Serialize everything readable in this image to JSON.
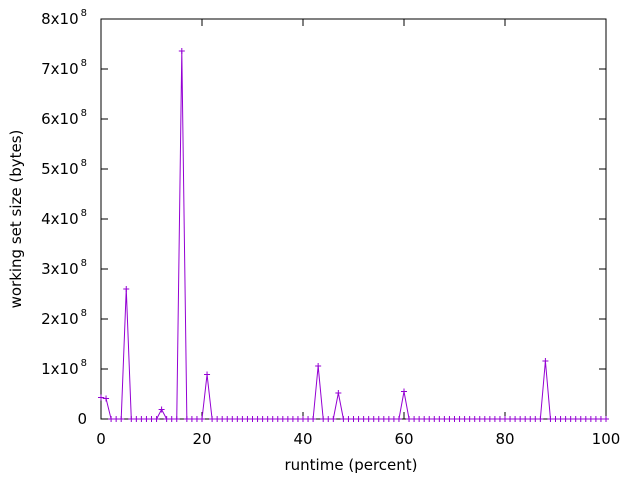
{
  "chart_data": {
    "type": "line",
    "xlabel": "runtime (percent)",
    "ylabel": "working set size (bytes)",
    "xlim": [
      0,
      100
    ],
    "ylim": [
      0,
      800000000
    ],
    "x_ticks": [
      0,
      20,
      40,
      60,
      80,
      100
    ],
    "x_tick_labels": [
      "0",
      "20",
      "40",
      "60",
      "80",
      "100"
    ],
    "y_ticks": [
      {
        "value": 0,
        "mantissa": "0",
        "exponent": ""
      },
      {
        "value": 100000000,
        "mantissa": "1x10",
        "exponent": "8"
      },
      {
        "value": 200000000,
        "mantissa": "2x10",
        "exponent": "8"
      },
      {
        "value": 300000000,
        "mantissa": "3x10",
        "exponent": "8"
      },
      {
        "value": 400000000,
        "mantissa": "4x10",
        "exponent": "8"
      },
      {
        "value": 500000000,
        "mantissa": "5x10",
        "exponent": "8"
      },
      {
        "value": 600000000,
        "mantissa": "6x10",
        "exponent": "8"
      },
      {
        "value": 700000000,
        "mantissa": "7x10",
        "exponent": "8"
      },
      {
        "value": 800000000,
        "mantissa": "8x10",
        "exponent": "8"
      }
    ],
    "grid": false,
    "series_color": "#9400d3",
    "marker": "plus",
    "series": [
      {
        "x": [
          0,
          1,
          2,
          3,
          4,
          5,
          6,
          7,
          8,
          9,
          10,
          11,
          12,
          13,
          14,
          15,
          16,
          17,
          18,
          19,
          20,
          21,
          22,
          23,
          24,
          25,
          26,
          27,
          28,
          29,
          30,
          31,
          32,
          33,
          34,
          35,
          36,
          37,
          38,
          39,
          40,
          41,
          42,
          43,
          44,
          45,
          46,
          47,
          48,
          49,
          50,
          51,
          52,
          53,
          54,
          55,
          56,
          57,
          58,
          59,
          60,
          61,
          62,
          63,
          64,
          65,
          66,
          67,
          68,
          69,
          70,
          71,
          72,
          73,
          74,
          75,
          76,
          77,
          78,
          79,
          80,
          81,
          82,
          83,
          84,
          85,
          86,
          87,
          88,
          89,
          90,
          91,
          92,
          93,
          94,
          95,
          96,
          97,
          98,
          99,
          100
        ],
        "y": [
          43000000,
          41000000,
          0,
          0,
          0,
          260000000,
          0,
          0,
          0,
          0,
          0,
          0,
          19000000,
          0,
          0,
          0,
          736000000,
          0,
          0,
          0,
          0,
          89000000,
          0,
          0,
          0,
          0,
          0,
          0,
          0,
          0,
          0,
          0,
          0,
          0,
          0,
          0,
          0,
          0,
          0,
          0,
          0,
          0,
          0,
          106000000,
          0,
          0,
          0,
          52000000,
          0,
          0,
          0,
          0,
          0,
          0,
          0,
          0,
          0,
          0,
          0,
          0,
          55000000,
          0,
          0,
          0,
          0,
          0,
          0,
          0,
          0,
          0,
          0,
          0,
          0,
          0,
          0,
          0,
          0,
          0,
          0,
          0,
          0,
          0,
          0,
          0,
          0,
          0,
          0,
          0,
          116000000,
          0,
          0,
          0,
          0,
          0,
          0,
          0,
          0,
          0,
          0,
          0,
          0
        ]
      }
    ]
  }
}
